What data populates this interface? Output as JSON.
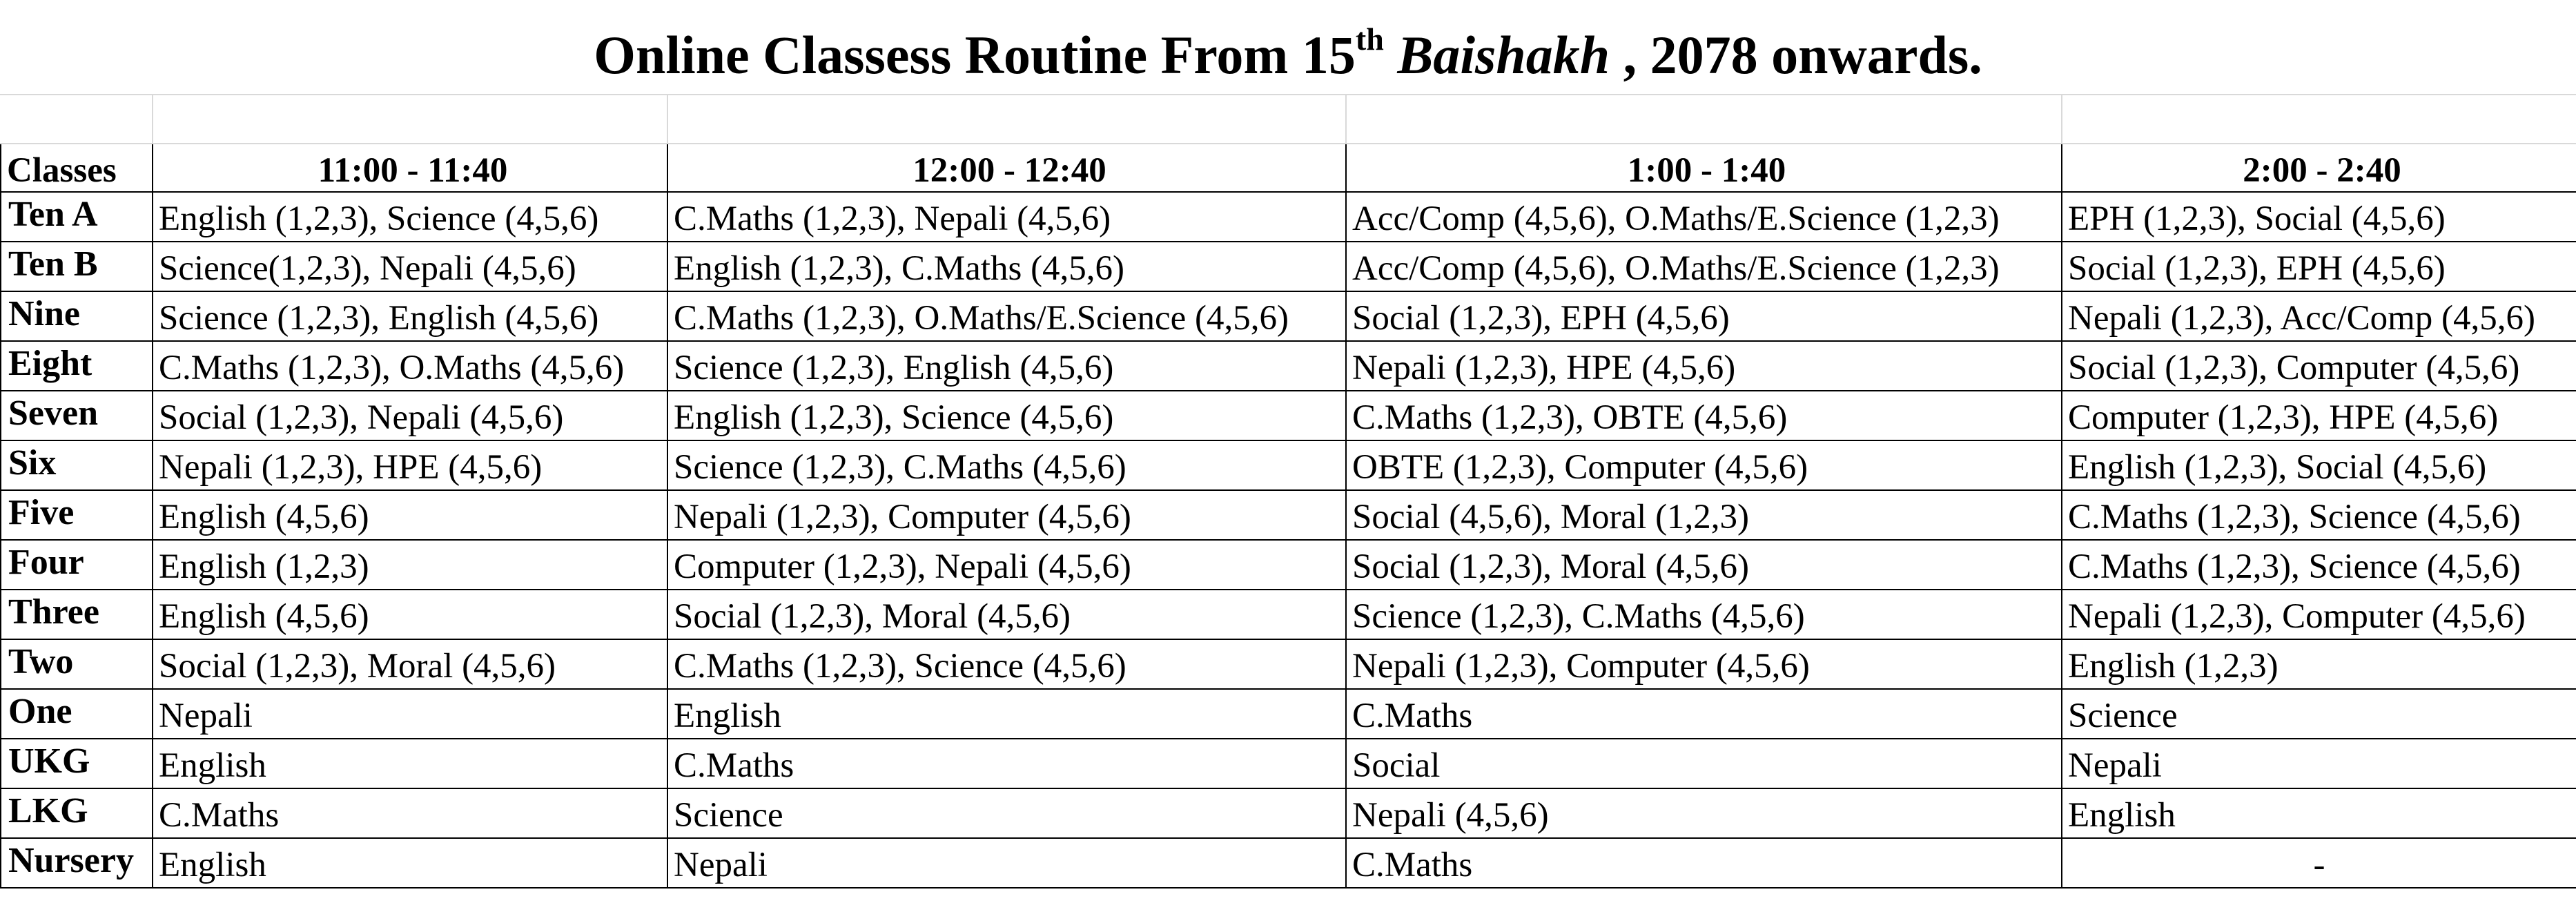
{
  "title": {
    "prefix": "Online Classess Routine From 15",
    "superscript": "th",
    "italic": "Baishakh",
    "suffix": " , 2078 onwards."
  },
  "header": {
    "classes_label": "Classes",
    "periods": [
      "11:00 - 11:40",
      "12:00 - 12:40",
      "1:00 - 1:40",
      "2:00 - 2:40"
    ]
  },
  "rows": [
    {
      "class": "Ten A",
      "cells": [
        "English (1,2,3), Science (4,5,6)",
        "C.Maths (1,2,3), Nepali (4,5,6)",
        "Acc/Comp (4,5,6), O.Maths/E.Science (1,2,3)",
        "EPH (1,2,3), Social (4,5,6)"
      ]
    },
    {
      "class": "Ten B",
      "cells": [
        "Science(1,2,3), Nepali (4,5,6)",
        "English (1,2,3), C.Maths (4,5,6)",
        "Acc/Comp (4,5,6), O.Maths/E.Science (1,2,3)",
        "Social (1,2,3), EPH (4,5,6)"
      ]
    },
    {
      "class": "Nine",
      "cells": [
        "Science (1,2,3), English (4,5,6)",
        "C.Maths (1,2,3), O.Maths/E.Science (4,5,6)",
        "Social (1,2,3), EPH (4,5,6)",
        "Nepali (1,2,3), Acc/Comp (4,5,6)"
      ]
    },
    {
      "class": "Eight",
      "cells": [
        "C.Maths (1,2,3), O.Maths (4,5,6)",
        "Science (1,2,3), English (4,5,6)",
        "Nepali (1,2,3), HPE (4,5,6)",
        "Social (1,2,3), Computer (4,5,6)"
      ]
    },
    {
      "class": "Seven",
      "cells": [
        "Social (1,2,3), Nepali (4,5,6)",
        "English (1,2,3), Science (4,5,6)",
        "C.Maths (1,2,3), OBTE (4,5,6)",
        "Computer (1,2,3), HPE (4,5,6)"
      ]
    },
    {
      "class": "Six",
      "cells": [
        "Nepali (1,2,3), HPE (4,5,6)",
        "Science (1,2,3), C.Maths (4,5,6)",
        "OBTE (1,2,3), Computer (4,5,6)",
        "English (1,2,3), Social (4,5,6)"
      ]
    },
    {
      "class": "Five",
      "cells": [
        "English (4,5,6)",
        "Nepali (1,2,3), Computer (4,5,6)",
        "Social (4,5,6), Moral (1,2,3)",
        "C.Maths (1,2,3), Science (4,5,6)"
      ]
    },
    {
      "class": "Four",
      "cells": [
        "English (1,2,3)",
        "Computer (1,2,3), Nepali (4,5,6)",
        "Social (1,2,3), Moral (4,5,6)",
        "C.Maths (1,2,3), Science (4,5,6)"
      ]
    },
    {
      "class": "Three",
      "cells": [
        "English (4,5,6)",
        "Social (1,2,3), Moral (4,5,6)",
        "Science (1,2,3), C.Maths (4,5,6)",
        "Nepali (1,2,3), Computer (4,5,6)"
      ]
    },
    {
      "class": "Two",
      "cells": [
        "Social (1,2,3), Moral (4,5,6)",
        "C.Maths (1,2,3), Science (4,5,6)",
        "Nepali (1,2,3), Computer (4,5,6)",
        "English (1,2,3)"
      ]
    },
    {
      "class": "One",
      "cells": [
        "Nepali",
        "English",
        "C.Maths",
        "Science"
      ]
    },
    {
      "class": "UKG",
      "cells": [
        "English",
        "C.Maths",
        "Social",
        "Nepali"
      ]
    },
    {
      "class": "LKG",
      "cells": [
        "C.Maths",
        "Science",
        "Nepali (4,5,6)",
        "English"
      ]
    },
    {
      "class": "Nursery",
      "cells": [
        "English",
        "Nepali",
        "C.Maths",
        "-"
      ]
    }
  ]
}
